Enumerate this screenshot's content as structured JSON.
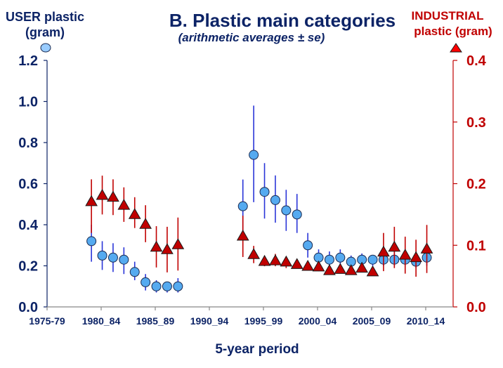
{
  "chart_data": {
    "type": "scatter",
    "title": "B.  Plastic main categories",
    "subtitle": "(arithmetic averages ± se)",
    "xlabel": "5-year period",
    "categories": [
      "1975-79",
      "1980_84",
      "1985_89",
      "1990_94",
      "1995_99",
      "2000_04",
      "2005_09",
      "2010_14"
    ],
    "x_range": [
      1975,
      2015
    ],
    "left_axis": {
      "label_line1": "USER plastic",
      "label_line2": "(gram)",
      "ylim": [
        0,
        1.2
      ],
      "ticks": [
        "0.0",
        "0.2",
        "0.4",
        "0.6",
        "0.8",
        "1.0",
        "1.2"
      ],
      "tick_values": [
        0,
        0.2,
        0.4,
        0.6,
        0.8,
        1.0,
        1.2
      ],
      "color": "#0c2366"
    },
    "right_axis": {
      "label_line1": "INDUSTRIAL",
      "label_line2": "plastic (gram)",
      "ylim": [
        0,
        0.4
      ],
      "ticks": [
        "0.0",
        "0.1",
        "0.2",
        "0.3",
        "0.4"
      ],
      "tick_values": [
        0,
        0.1,
        0.2,
        0.3,
        0.4
      ],
      "color": "#c00000"
    },
    "grid": false,
    "legend": [
      {
        "name": "USER plastic",
        "marker": "circle",
        "position": "top-left",
        "color": "#99ccff"
      },
      {
        "name": "INDUSTRIAL plastic",
        "marker": "triangle",
        "position": "top-right",
        "color": "#ff0000"
      }
    ],
    "series": [
      {
        "name": "USER plastic (gram)",
        "axis": "left",
        "marker": "circle",
        "marker_color": "#55aaf0",
        "errorbar_color": "#2a35d8",
        "points": [
          {
            "year": 1979,
            "y": 0.32,
            "lo": 0.22,
            "hi": 0.4
          },
          {
            "year": 1980,
            "y": 0.25,
            "lo": 0.18,
            "hi": 0.32
          },
          {
            "year": 1981,
            "y": 0.24,
            "lo": 0.17,
            "hi": 0.31
          },
          {
            "year": 1982,
            "y": 0.23,
            "lo": 0.16,
            "hi": 0.29
          },
          {
            "year": 1983,
            "y": 0.17,
            "lo": 0.13,
            "hi": 0.22
          },
          {
            "year": 1984,
            "y": 0.12,
            "lo": 0.08,
            "hi": 0.16
          },
          {
            "year": 1985,
            "y": 0.1,
            "lo": 0.07,
            "hi": 0.13
          },
          {
            "year": 1986,
            "y": 0.1,
            "lo": 0.07,
            "hi": 0.12
          },
          {
            "year": 1987,
            "y": 0.1,
            "lo": 0.07,
            "hi": 0.14
          },
          {
            "year": 1993,
            "y": 0.49,
            "lo": 0.36,
            "hi": 0.62
          },
          {
            "year": 1994,
            "y": 0.74,
            "lo": 0.51,
            "hi": 0.98
          },
          {
            "year": 1995,
            "y": 0.56,
            "lo": 0.43,
            "hi": 0.7
          },
          {
            "year": 1996,
            "y": 0.52,
            "lo": 0.41,
            "hi": 0.64
          },
          {
            "year": 1997,
            "y": 0.47,
            "lo": 0.37,
            "hi": 0.57
          },
          {
            "year": 1998,
            "y": 0.45,
            "lo": 0.36,
            "hi": 0.55
          },
          {
            "year": 1999,
            "y": 0.3,
            "lo": 0.24,
            "hi": 0.36
          },
          {
            "year": 2000,
            "y": 0.24,
            "lo": 0.2,
            "hi": 0.28
          },
          {
            "year": 2001,
            "y": 0.23,
            "lo": 0.2,
            "hi": 0.27
          },
          {
            "year": 2002,
            "y": 0.24,
            "lo": 0.2,
            "hi": 0.28
          },
          {
            "year": 2003,
            "y": 0.22,
            "lo": 0.19,
            "hi": 0.25
          },
          {
            "year": 2004,
            "y": 0.23,
            "lo": 0.2,
            "hi": 0.26
          },
          {
            "year": 2005,
            "y": 0.23,
            "lo": 0.2,
            "hi": 0.25
          },
          {
            "year": 2006,
            "y": 0.23,
            "lo": 0.2,
            "hi": 0.26
          },
          {
            "year": 2007,
            "y": 0.23,
            "lo": 0.2,
            "hi": 0.27
          },
          {
            "year": 2008,
            "y": 0.23,
            "lo": 0.2,
            "hi": 0.26
          },
          {
            "year": 2009,
            "y": 0.22,
            "lo": 0.19,
            "hi": 0.25
          },
          {
            "year": 2010,
            "y": 0.24,
            "lo": 0.2,
            "hi": 0.28
          }
        ]
      },
      {
        "name": "INDUSTRIAL plastic (gram)",
        "axis": "right",
        "marker": "triangle",
        "marker_color": "#c00000",
        "errorbar_color": "#c00000",
        "points": [
          {
            "year": 1979,
            "y": 0.17,
            "lo": 0.12,
            "hi": 0.207
          },
          {
            "year": 1980,
            "y": 0.18,
            "lo": 0.15,
            "hi": 0.213
          },
          {
            "year": 1981,
            "y": 0.177,
            "lo": 0.149,
            "hi": 0.207
          },
          {
            "year": 1982,
            "y": 0.164,
            "lo": 0.138,
            "hi": 0.194
          },
          {
            "year": 1983,
            "y": 0.149,
            "lo": 0.128,
            "hi": 0.178
          },
          {
            "year": 1984,
            "y": 0.133,
            "lo": 0.105,
            "hi": 0.165
          },
          {
            "year": 1985,
            "y": 0.096,
            "lo": 0.064,
            "hi": 0.131
          },
          {
            "year": 1986,
            "y": 0.092,
            "lo": 0.056,
            "hi": 0.13
          },
          {
            "year": 1987,
            "y": 0.1,
            "lo": 0.059,
            "hi": 0.145
          },
          {
            "year": 1993,
            "y": 0.114,
            "lo": 0.081,
            "hi": 0.148
          },
          {
            "year": 1994,
            "y": 0.084,
            "lo": 0.071,
            "hi": 0.099
          },
          {
            "year": 1995,
            "y": 0.073,
            "lo": 0.066,
            "hi": 0.083
          },
          {
            "year": 1996,
            "y": 0.074,
            "lo": 0.066,
            "hi": 0.086
          },
          {
            "year": 1997,
            "y": 0.072,
            "lo": 0.063,
            "hi": 0.082
          },
          {
            "year": 1998,
            "y": 0.068,
            "lo": 0.064,
            "hi": 0.072
          },
          {
            "year": 1999,
            "y": 0.065,
            "lo": 0.061,
            "hi": 0.069
          },
          {
            "year": 2000,
            "y": 0.064,
            "lo": 0.058,
            "hi": 0.07
          },
          {
            "year": 2001,
            "y": 0.058,
            "lo": 0.055,
            "hi": 0.061
          },
          {
            "year": 2002,
            "y": 0.06,
            "lo": 0.056,
            "hi": 0.064
          },
          {
            "year": 2003,
            "y": 0.058,
            "lo": 0.055,
            "hi": 0.061
          },
          {
            "year": 2004,
            "y": 0.062,
            "lo": 0.058,
            "hi": 0.066
          },
          {
            "year": 2005,
            "y": 0.056,
            "lo": 0.053,
            "hi": 0.059
          },
          {
            "year": 2006,
            "y": 0.088,
            "lo": 0.058,
            "hi": 0.12
          },
          {
            "year": 2007,
            "y": 0.096,
            "lo": 0.063,
            "hi": 0.13
          },
          {
            "year": 2008,
            "y": 0.083,
            "lo": 0.054,
            "hi": 0.114
          },
          {
            "year": 2009,
            "y": 0.079,
            "lo": 0.049,
            "hi": 0.109
          },
          {
            "year": 2010,
            "y": 0.093,
            "lo": 0.055,
            "hi": 0.133
          }
        ]
      }
    ]
  }
}
